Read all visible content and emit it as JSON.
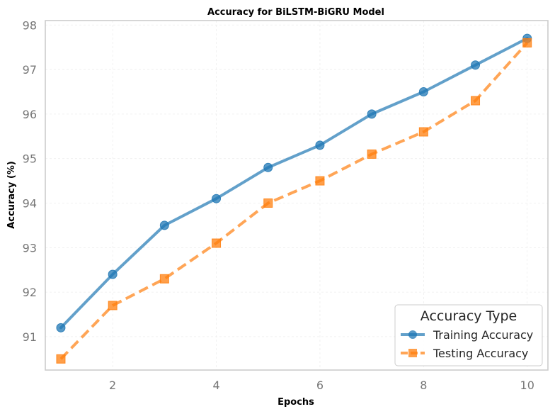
{
  "chart_data": {
    "type": "line",
    "title": "Accuracy for BiLSTM-BiGRU Model",
    "xlabel": "Epochs",
    "ylabel": "Accuracy (%)",
    "x": [
      1,
      2,
      3,
      4,
      5,
      6,
      7,
      8,
      9,
      10
    ],
    "xlim": [
      0.7,
      10.4
    ],
    "ylim": [
      90.25,
      98.1
    ],
    "xticks": [
      2,
      4,
      6,
      8,
      10
    ],
    "yticks": [
      91,
      92,
      93,
      94,
      95,
      96,
      97,
      98
    ],
    "grid": true,
    "legend": {
      "title": "Accuracy Type",
      "placement": "lower-right"
    },
    "series": [
      {
        "name": "Training Accuracy",
        "values": [
          91.2,
          92.4,
          93.5,
          94.1,
          94.8,
          95.3,
          96.0,
          96.5,
          97.1,
          97.7
        ],
        "color": "#1f77b4",
        "marker": "circle",
        "linestyle": "solid"
      },
      {
        "name": "Testing Accuracy",
        "values": [
          90.5,
          91.7,
          92.3,
          93.1,
          94.0,
          94.5,
          95.1,
          95.6,
          96.3,
          97.6
        ],
        "color": "#ff7f0e",
        "marker": "square",
        "linestyle": "dashed"
      }
    ]
  }
}
